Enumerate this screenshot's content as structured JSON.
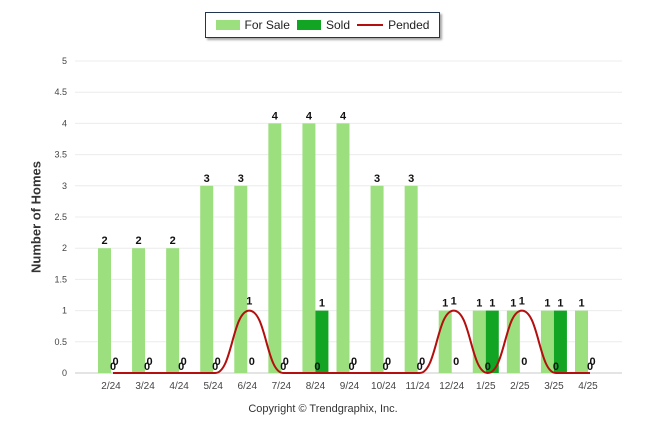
{
  "chart_data": {
    "type": "bar",
    "title": "",
    "xlabel": "",
    "ylabel": "Number of Homes",
    "ylim": [
      0,
      5
    ],
    "yticks": [
      "0",
      "0.5",
      "1",
      "1.5",
      "2",
      "2.5",
      "3",
      "3.5",
      "4",
      "4.5",
      "5"
    ],
    "grid": true,
    "legend_position": "top-center",
    "categories": [
      "2/24",
      "3/24",
      "4/24",
      "5/24",
      "6/24",
      "7/24",
      "8/24",
      "9/24",
      "10/24",
      "11/24",
      "12/24",
      "1/25",
      "2/25",
      "3/25",
      "4/25"
    ],
    "series": [
      {
        "name": "For Sale",
        "kind": "bar",
        "color": "#9cdf7e",
        "values": [
          2,
          2,
          2,
          3,
          3,
          4,
          4,
          4,
          3,
          3,
          1,
          1,
          1,
          1,
          1
        ]
      },
      {
        "name": "Sold",
        "kind": "bar",
        "color": "#12a524",
        "values": [
          0,
          0,
          0,
          0,
          0,
          0,
          1,
          0,
          0,
          0,
          0,
          1,
          0,
          1,
          0
        ]
      },
      {
        "name": "Pended",
        "kind": "line",
        "color": "#b30f0f",
        "values": [
          0,
          0,
          0,
          0,
          1,
          0,
          0,
          0,
          0,
          0,
          1,
          0,
          1,
          0,
          0
        ]
      }
    ]
  },
  "legend": {
    "for_sale": "For Sale",
    "sold": "Sold",
    "pended": "Pended"
  },
  "footer": {
    "copyright": "Copyright © Trendgraphix, Inc."
  }
}
